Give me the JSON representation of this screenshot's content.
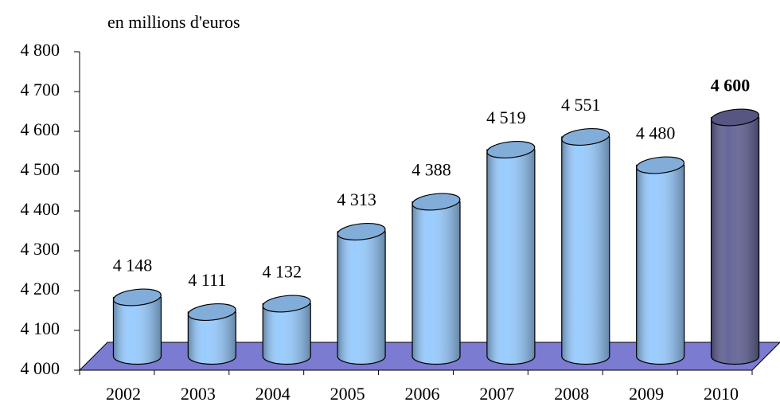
{
  "chart_data": {
    "type": "bar",
    "subtitle": "en millions d'euros",
    "categories": [
      "2002",
      "2003",
      "2004",
      "2005",
      "2006",
      "2007",
      "2008",
      "2009",
      "2010"
    ],
    "values": [
      4148,
      4111,
      4132,
      4313,
      4388,
      4519,
      4551,
      4480,
      4600
    ],
    "value_labels": [
      "4 148",
      "4 111",
      "4 132",
      "4 313",
      "4 388",
      "4 519",
      "4 551",
      "4 480",
      "4 600"
    ],
    "colors": [
      "#99ccff",
      "#99ccff",
      "#99ccff",
      "#99ccff",
      "#99ccff",
      "#99ccff",
      "#99ccff",
      "#99ccff",
      "#666699"
    ],
    "label_colors": [
      "#000000",
      "#000000",
      "#000000",
      "#000000",
      "#000000",
      "#000000",
      "#000000",
      "#000000",
      "#ff0000"
    ],
    "floor_color": "#7b7bd1",
    "ylim": [
      4000,
      4800
    ],
    "yticks": [
      {
        "value": 4000,
        "label": "4 000"
      },
      {
        "value": 4100,
        "label": "4 100"
      },
      {
        "value": 4200,
        "label": "4 200"
      },
      {
        "value": 4300,
        "label": "4 300"
      },
      {
        "value": 4400,
        "label": "4 400"
      },
      {
        "value": 4500,
        "label": "4 500"
      },
      {
        "value": 4600,
        "label": "4 600"
      },
      {
        "value": 4700,
        "label": "4 700"
      },
      {
        "value": 4800,
        "label": "4 800"
      }
    ]
  }
}
